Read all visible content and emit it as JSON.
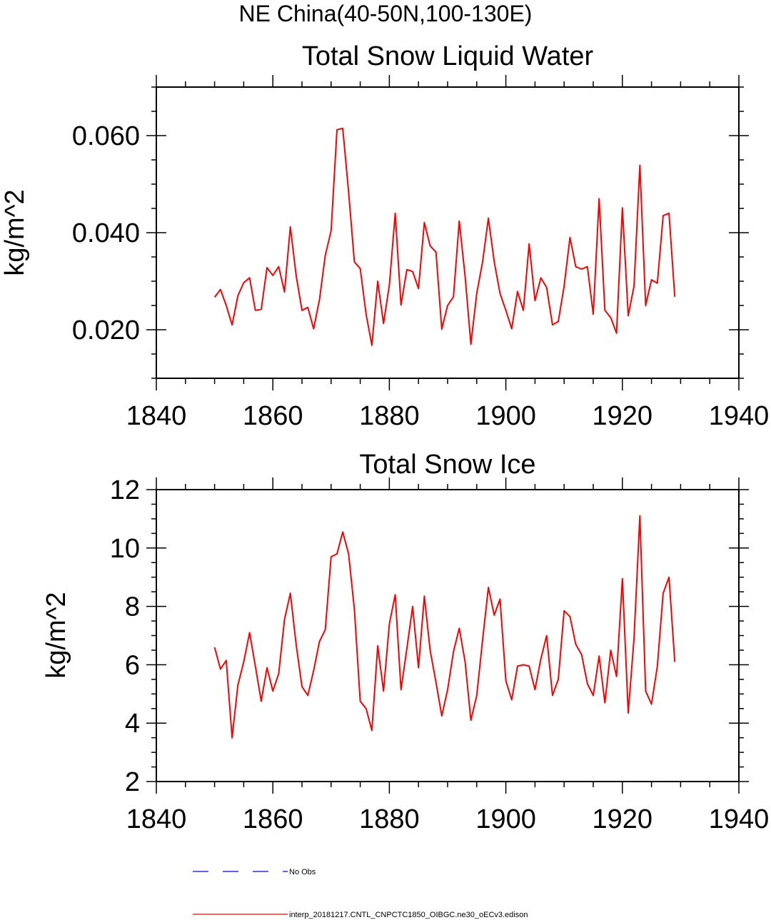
{
  "figure": {
    "main_title": "NE China(40-50N,100-130E)"
  },
  "chart_data": [
    {
      "type": "line",
      "title": "Total Snow Liquid Water",
      "xlabel": "",
      "ylabel": "kg/m^2",
      "xlim": [
        1840,
        1940
      ],
      "ylim": [
        0.01,
        0.07
      ],
      "xticks": [
        1840,
        1860,
        1880,
        1900,
        1920,
        1940
      ],
      "xtick_labels": [
        "1840",
        "1860",
        "1880",
        "1900",
        "1920",
        "1940"
      ],
      "yticks": [
        0.02,
        0.04,
        0.06
      ],
      "ytick_labels": [
        "0.020",
        "0.040",
        "0.060"
      ],
      "series": [
        {
          "name": "interp_20181217.CNTL_CNPCTC1850_OIBGC.ne30_oECv3.edison",
          "color": "#ff0000",
          "x": [
            1850,
            1851,
            1852,
            1853,
            1854,
            1855,
            1856,
            1857,
            1858,
            1859,
            1860,
            1861,
            1862,
            1863,
            1864,
            1865,
            1866,
            1867,
            1868,
            1869,
            1870,
            1871,
            1872,
            1873,
            1874,
            1875,
            1876,
            1877,
            1878,
            1879,
            1880,
            1881,
            1882,
            1883,
            1884,
            1885,
            1886,
            1887,
            1888,
            1889,
            1890,
            1891,
            1892,
            1893,
            1894,
            1895,
            1896,
            1897,
            1898,
            1899,
            1900,
            1901,
            1902,
            1903,
            1904,
            1905,
            1906,
            1907,
            1908,
            1909,
            1910,
            1911,
            1912,
            1913,
            1914,
            1915,
            1916,
            1917,
            1918,
            1919,
            1920,
            1921,
            1922,
            1923,
            1924,
            1925,
            1926,
            1927,
            1928,
            1929
          ],
          "values": [
            0.0267,
            0.0283,
            0.025,
            0.021,
            0.027,
            0.0297,
            0.0307,
            0.024,
            0.0242,
            0.0328,
            0.0312,
            0.033,
            0.0278,
            0.0412,
            0.0312,
            0.024,
            0.0246,
            0.0202,
            0.0262,
            0.0353,
            0.0404,
            0.0612,
            0.0615,
            0.0484,
            0.034,
            0.0326,
            0.0232,
            0.0168,
            0.03,
            0.0213,
            0.0292,
            0.044,
            0.0251,
            0.0324,
            0.032,
            0.0285,
            0.0421,
            0.0373,
            0.036,
            0.0201,
            0.025,
            0.0268,
            0.0424,
            0.031,
            0.017,
            0.0275,
            0.034,
            0.043,
            0.034,
            0.0275,
            0.024,
            0.0202,
            0.0279,
            0.024,
            0.0377,
            0.026,
            0.0307,
            0.0287,
            0.021,
            0.0217,
            0.029,
            0.039,
            0.033,
            0.0325,
            0.033,
            0.0232,
            0.047,
            0.024,
            0.0225,
            0.0193,
            0.0451,
            0.0229,
            0.029,
            0.0539,
            0.025,
            0.0303,
            0.0296,
            0.0435,
            0.044,
            0.0268
          ]
        }
      ]
    },
    {
      "type": "line",
      "title": "Total Snow Ice",
      "xlabel": "",
      "ylabel": "kg/m^2",
      "xlim": [
        1840,
        1940
      ],
      "ylim": [
        2,
        12
      ],
      "xticks": [
        1840,
        1860,
        1880,
        1900,
        1920,
        1940
      ],
      "xtick_labels": [
        "1840",
        "1860",
        "1880",
        "1900",
        "1920",
        "1940"
      ],
      "yticks": [
        2,
        4,
        6,
        8,
        10,
        12
      ],
      "ytick_labels": [
        "2",
        "4",
        "6",
        "8",
        "10",
        "12"
      ],
      "series": [
        {
          "name": "interp_20181217.CNTL_CNPCTC1850_OIBGC.ne30_oECv3.edison",
          "color": "#ff0000",
          "x": [
            1850,
            1851,
            1852,
            1853,
            1854,
            1855,
            1856,
            1857,
            1858,
            1859,
            1860,
            1861,
            1862,
            1863,
            1864,
            1865,
            1866,
            1867,
            1868,
            1869,
            1870,
            1871,
            1872,
            1873,
            1874,
            1875,
            1876,
            1877,
            1878,
            1879,
            1880,
            1881,
            1882,
            1883,
            1884,
            1885,
            1886,
            1887,
            1888,
            1889,
            1890,
            1891,
            1892,
            1893,
            1894,
            1895,
            1896,
            1897,
            1898,
            1899,
            1900,
            1901,
            1902,
            1903,
            1904,
            1905,
            1906,
            1907,
            1908,
            1909,
            1910,
            1911,
            1912,
            1913,
            1914,
            1915,
            1916,
            1917,
            1918,
            1919,
            1920,
            1921,
            1922,
            1923,
            1924,
            1925,
            1926,
            1927,
            1928,
            1929
          ],
          "values": [
            6.6,
            5.85,
            6.15,
            3.5,
            5.3,
            6.1,
            7.1,
            5.95,
            4.75,
            5.9,
            5.1,
            5.7,
            7.55,
            8.45,
            6.7,
            5.25,
            4.95,
            5.8,
            6.8,
            7.2,
            9.7,
            9.8,
            10.55,
            9.8,
            7.9,
            4.75,
            4.5,
            3.75,
            6.65,
            5.1,
            7.4,
            8.4,
            5.15,
            6.55,
            8.0,
            5.9,
            8.35,
            6.5,
            5.4,
            4.25,
            5.15,
            6.45,
            7.25,
            6.1,
            4.1,
            4.95,
            6.85,
            8.65,
            7.7,
            8.25,
            5.45,
            4.8,
            5.95,
            6.0,
            5.95,
            5.15,
            6.2,
            7.0,
            4.95,
            5.5,
            7.85,
            7.65,
            6.7,
            6.35,
            5.35,
            4.95,
            6.3,
            4.7,
            6.5,
            5.6,
            8.95,
            4.35,
            6.9,
            11.1,
            5.1,
            4.65,
            5.95,
            8.45,
            9.0,
            6.1
          ]
        }
      ]
    }
  ],
  "legend": {
    "items": [
      {
        "label": "No Obs",
        "color": "#0000ff",
        "style": "dashed"
      },
      {
        "label": "interp_20181217.CNTL_CNPCTC1850_OIBGC.ne30_oECv3.edison",
        "color": "#ff0000",
        "style": "solid"
      }
    ]
  }
}
